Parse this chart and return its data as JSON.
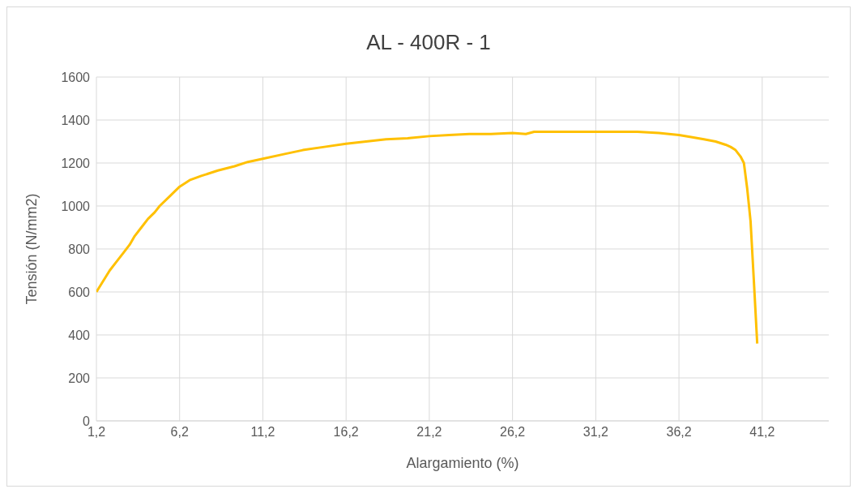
{
  "chart_data": {
    "type": "line",
    "title": "AL - 400R - 1",
    "xlabel": "Alargamiento (%)",
    "ylabel": "Tensión (N/mm2)",
    "x": [
      1.2,
      1.6,
      2.0,
      2.4,
      2.8,
      3.2,
      3.5,
      3.9,
      4.3,
      4.7,
      5.0,
      5.6,
      6.2,
      6.8,
      7.5,
      8.5,
      9.5,
      10.3,
      11.2,
      12.4,
      13.6,
      14.9,
      16.2,
      17.4,
      18.6,
      19.9,
      21.2,
      22.4,
      23.6,
      24.9,
      26.2,
      27.0,
      27.5,
      28.7,
      30.0,
      31.2,
      32.5,
      33.7,
      35.0,
      36.2,
      37.0,
      37.7,
      38.4,
      39.0,
      39.3,
      39.6,
      39.9,
      40.1,
      40.3,
      40.5,
      40.7,
      40.9
    ],
    "series": [
      {
        "color": "#ffc000",
        "values": [
          600,
          650,
          700,
          740,
          780,
          820,
          860,
          900,
          940,
          970,
          1000,
          1045,
          1090,
          1120,
          1140,
          1165,
          1185,
          1205,
          1220,
          1240,
          1260,
          1275,
          1290,
          1300,
          1310,
          1315,
          1325,
          1330,
          1335,
          1335,
          1340,
          1335,
          1345,
          1345,
          1345,
          1345,
          1345,
          1345,
          1340,
          1330,
          1320,
          1310,
          1300,
          1285,
          1275,
          1260,
          1230,
          1200,
          1080,
          930,
          650,
          360
        ]
      }
    ],
    "xlim": [
      1.2,
      45.2
    ],
    "xticks": [
      {
        "value": 1.2,
        "label": "1,2"
      },
      {
        "value": 6.2,
        "label": "6,2"
      },
      {
        "value": 11.2,
        "label": "11,2"
      },
      {
        "value": 16.2,
        "label": "16,2"
      },
      {
        "value": 21.2,
        "label": "21,2"
      },
      {
        "value": 26.2,
        "label": "26,2"
      },
      {
        "value": 31.2,
        "label": "31,2"
      },
      {
        "value": 36.2,
        "label": "36,2"
      },
      {
        "value": 41.2,
        "label": "41,2"
      }
    ],
    "ylim": [
      0,
      1600
    ],
    "yticks": [
      0,
      200,
      400,
      600,
      800,
      1000,
      1200,
      1400,
      1600
    ],
    "grid": true,
    "legend": false,
    "marker": "none",
    "line_style": "solid"
  }
}
